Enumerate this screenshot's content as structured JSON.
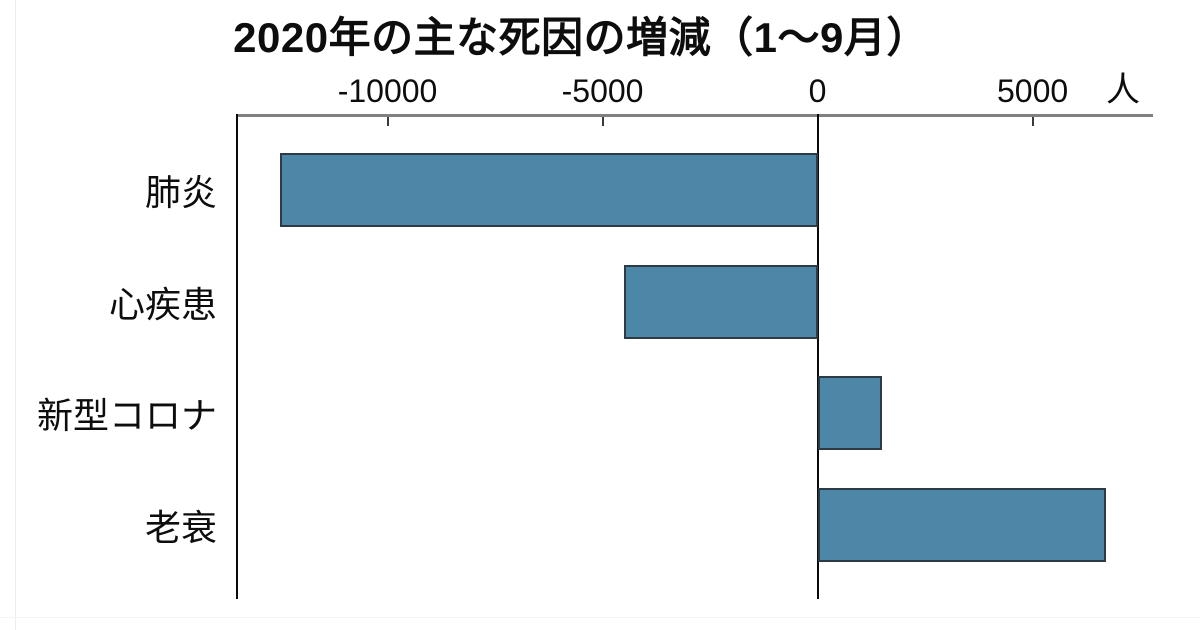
{
  "title": "2020年の主な死因の増減（1〜9月）",
  "colors": {
    "bar": "#4d87a8",
    "bar_border": "#2e3a44",
    "axis_line": "#808080",
    "zero_line": "#0a0a0a",
    "text": "#0d0d0d",
    "background": "#ffffff"
  },
  "chart_data": {
    "type": "bar",
    "orientation": "horizontal",
    "title": "2020年の主な死因の増減（1〜9月）",
    "unit_label": "人",
    "categories": [
      "肺炎",
      "心疾患",
      "新型コロナ",
      "老衰"
    ],
    "values": [
      -12500,
      -4500,
      1500,
      6700
    ],
    "xlim": [
      -13500,
      7800
    ],
    "xticks": [
      -10000,
      -5000,
      0,
      5000
    ],
    "xtick_labels": [
      "-10000",
      "-5000",
      "0",
      "5000"
    ],
    "grid": false,
    "legend": false,
    "axis_position": "top"
  }
}
